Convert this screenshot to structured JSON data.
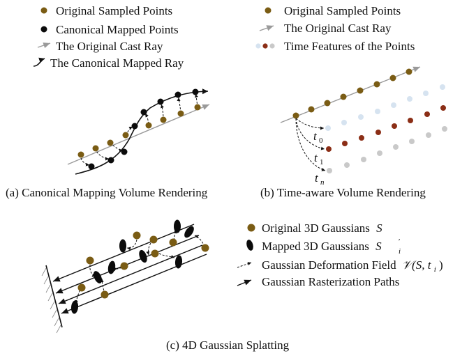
{
  "colors": {
    "original": "#7a5c14",
    "canonical": "#0b0b0b",
    "ray": "#9a9a9a",
    "time_light": "#d6e3f0",
    "time_dark": "#8b2e16",
    "time_grey": "#c9c9c9"
  },
  "legend_a": {
    "original": "Original Sampled Points",
    "canonical": "Canonical Mapped Points",
    "cast_ray": "The Original Cast Ray",
    "mapped_ray": "The Canonical Mapped Ray"
  },
  "legend_b": {
    "original": "Original Sampled Points",
    "cast_ray": "The Original Cast Ray",
    "time_features": "Time Features of the Points"
  },
  "panel_b_labels": {
    "t0": "t",
    "t0_sub": "0",
    "t1": "t",
    "t1_sub": "1",
    "tn": "t",
    "tn_sub": "n"
  },
  "legend_c": {
    "original": "Original 3D Gaussians",
    "original_sym": "S",
    "mapped": "Mapped 3D Gaussians",
    "mapped_sym": "S",
    "mapped_sub": "i",
    "mapped_sup": "′",
    "deform": "Gaussian Deformation Field",
    "deform_math": "𝒱(S, t",
    "deform_sub": "i",
    "deform_close": ")",
    "raster": "Gaussian Rasterization Paths"
  },
  "captions": {
    "a": "(a) Canonical Mapping Volume Rendering",
    "b": "(b) Time-aware Volume Rendering",
    "c": "(c) 4D Gaussian Splatting"
  }
}
